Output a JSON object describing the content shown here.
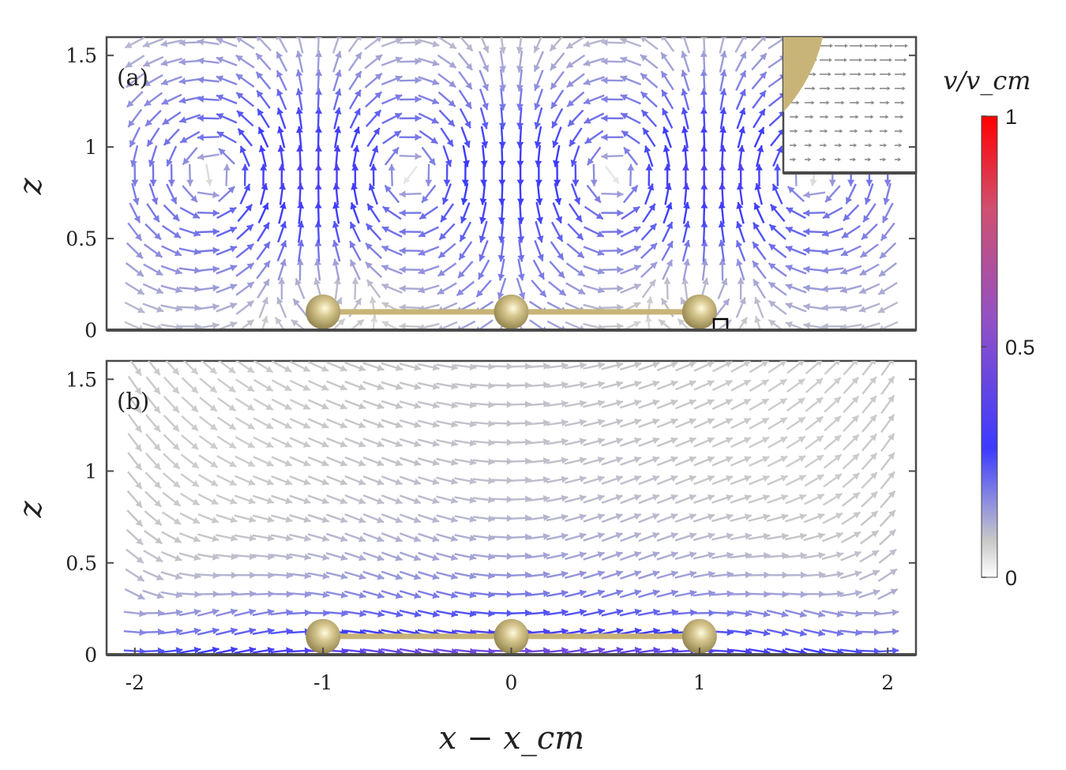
{
  "chart_data": [
    {
      "type": "quiver",
      "panel_label": "(a)",
      "xlim": [
        -2.15,
        2.15
      ],
      "ylim": [
        0,
        1.6
      ],
      "ylabel": "z",
      "yticks": [
        {
          "value": 0,
          "label": "0"
        },
        {
          "value": 0.5,
          "label": "0.5"
        },
        {
          "value": 1,
          "label": "1"
        },
        {
          "value": 1.5,
          "label": "1.5"
        }
      ],
      "spheres": [
        -1,
        0,
        1
      ],
      "sphere_height": 0.1,
      "flow_field": "vortices",
      "inset": true
    },
    {
      "type": "quiver",
      "panel_label": "(b)",
      "xlim": [
        -2.15,
        2.15
      ],
      "ylim": [
        0,
        1.6
      ],
      "ylabel": "z",
      "xlabel": "x − x_cm",
      "xticks": [
        {
          "value": -2,
          "label": "-2"
        },
        {
          "value": -1,
          "label": "-1"
        },
        {
          "value": 0,
          "label": "0"
        },
        {
          "value": 1,
          "label": "1"
        },
        {
          "value": 2,
          "label": "2"
        }
      ],
      "yticks": [
        {
          "value": 0,
          "label": "0"
        },
        {
          "value": 0.5,
          "label": "0.5"
        },
        {
          "value": 1,
          "label": "1"
        },
        {
          "value": 1.5,
          "label": "1.5"
        }
      ],
      "spheres": [
        -1,
        0,
        1
      ],
      "sphere_height": 0.1,
      "flow_field": "shear"
    }
  ],
  "colorbar": {
    "title": "v/v_cm",
    "range": [
      0,
      1
    ],
    "ticks": [
      {
        "value": 0,
        "label": "0"
      },
      {
        "value": 0.5,
        "label": "0.5"
      },
      {
        "value": 1,
        "label": "1"
      }
    ],
    "stops": [
      {
        "v": 0,
        "color": "#ffffff"
      },
      {
        "v": 0.08,
        "color": "#c8c8c8"
      },
      {
        "v": 0.28,
        "color": "#3b3bff"
      },
      {
        "v": 0.55,
        "color": "#9050c8"
      },
      {
        "v": 0.8,
        "color": "#d05070"
      },
      {
        "v": 1,
        "color": "#ff0000"
      }
    ]
  },
  "colors": {
    "sphere": "#c8b478",
    "rod": "#c8b478",
    "frame": "#4a4a4a"
  }
}
